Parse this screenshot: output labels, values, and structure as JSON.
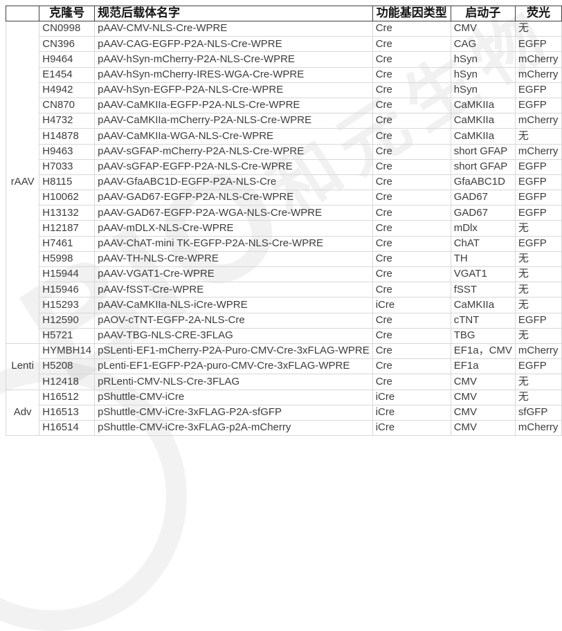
{
  "watermark": {
    "text_en": "BIO",
    "text_cn": "和元生物"
  },
  "table": {
    "headers": {
      "group": "",
      "clone": "克隆号",
      "name": "规范后载体名字",
      "gene_type": "功能基因类型",
      "promoter": "启动子",
      "fluor": "荧光"
    },
    "groups": [
      {
        "label": "rAAV",
        "rows": [
          {
            "clone": "CN0998",
            "name": "pAAV-CMV-NLS-Cre-WPRE",
            "gene_type": "Cre",
            "promoter": "CMV",
            "fluor": "无"
          },
          {
            "clone": "CN396",
            "name": "pAAV-CAG-EGFP-P2A-NLS-Cre-WPRE",
            "gene_type": "Cre",
            "promoter": "CAG",
            "fluor": "EGFP"
          },
          {
            "clone": "H9464",
            "name": "pAAV-hSyn-mCherry-P2A-NLS-Cre-WPRE",
            "gene_type": "Cre",
            "promoter": "hSyn",
            "fluor": "mCherry"
          },
          {
            "clone": "E1454",
            "name": "pAAV-hSyn-mCherry-IRES-WGA-Cre-WPRE",
            "gene_type": "Cre",
            "promoter": "hSyn",
            "fluor": "mCherry"
          },
          {
            "clone": "H4942",
            "name": "pAAV-hSyn-EGFP-P2A-NLS-Cre-WPRE",
            "gene_type": "Cre",
            "promoter": "hSyn",
            "fluor": "EGFP"
          },
          {
            "clone": "CN870",
            "name": "pAAV-CaMKIIa-EGFP-P2A-NLS-Cre-WPRE",
            "gene_type": "Cre",
            "promoter": "CaMKIIa",
            "fluor": "EGFP"
          },
          {
            "clone": "H4732",
            "name": "pAAV-CaMKIIa-mCherry-P2A-NLS-Cre-WPRE",
            "gene_type": "Cre",
            "promoter": "CaMKIIa",
            "fluor": "mCherry"
          },
          {
            "clone": "H14878",
            "name": "pAAV-CaMKIIa-WGA-NLS-Cre-WPRE",
            "gene_type": "Cre",
            "promoter": "CaMKIIa",
            "fluor": "无"
          },
          {
            "clone": "H9463",
            "name": "pAAV-sGFAP-mCherry-P2A-NLS-Cre-WPRE",
            "gene_type": "Cre",
            "promoter": "short GFAP",
            "fluor": "mCherry"
          },
          {
            "clone": "H7033",
            "name": "pAAV-sGFAP-EGFP-P2A-NLS-Cre-WPRE",
            "gene_type": "Cre",
            "promoter": "short GFAP",
            "fluor": "EGFP"
          },
          {
            "clone": "H8115",
            "name": "pAAV-GfaABC1D-EGFP-P2A-NLS-Cre",
            "gene_type": "Cre",
            "promoter": "GfaABC1D",
            "fluor": "EGFP"
          },
          {
            "clone": "H10062",
            "name": "pAAV-GAD67-EGFP-P2A-NLS-Cre-WPRE",
            "gene_type": "Cre",
            "promoter": "GAD67",
            "fluor": "EGFP"
          },
          {
            "clone": "H13132",
            "name": "pAAV-GAD67-EGFP-P2A-WGA-NLS-Cre-WPRE",
            "gene_type": "Cre",
            "promoter": "GAD67",
            "fluor": "EGFP"
          },
          {
            "clone": "H12187",
            "name": "pAAV-mDLX-NLS-Cre-WPRE",
            "gene_type": "Cre",
            "promoter": "mDlx",
            "fluor": "无"
          },
          {
            "clone": "H7461",
            "name": "pAAV-ChAT-mini TK-EGFP-P2A-NLS-Cre-WPRE",
            "gene_type": "Cre",
            "promoter": "ChAT",
            "fluor": "EGFP"
          },
          {
            "clone": "H5998",
            "name": "pAAV-TH-NLS-Cre-WPRE",
            "gene_type": "Cre",
            "promoter": "TH",
            "fluor": "无"
          },
          {
            "clone": "H15944",
            "name": "pAAV-VGAT1-Cre-WPRE",
            "gene_type": "Cre",
            "promoter": "VGAT1",
            "fluor": "无"
          },
          {
            "clone": "H15946",
            "name": "pAAV-fSST-Cre-WPRE",
            "gene_type": "Cre",
            "promoter": "fSST",
            "fluor": "无"
          },
          {
            "clone": "H15293",
            "name": "pAAV-CaMKIIa-NLS-iCre-WPRE",
            "gene_type": "iCre",
            "promoter": "CaMKIIa",
            "fluor": "无"
          },
          {
            "clone": "H12590",
            "name": "pAOV-cTNT-EGFP-2A-NLS-Cre",
            "gene_type": "Cre",
            "promoter": "cTNT",
            "fluor": "EGFP"
          },
          {
            "clone": "H5721",
            "name": "pAAV-TBG-NLS-CRE-3FLAG",
            "gene_type": "Cre",
            "promoter": "TBG",
            "fluor": "无"
          }
        ]
      },
      {
        "label": "Lenti",
        "rows": [
          {
            "clone": "HYMBH14",
            "name": "pSLenti-EF1-mCherry-P2A-Puro-CMV-Cre-3xFLAG-WPRE",
            "gene_type": "Cre",
            "promoter": "EF1a，CMV",
            "fluor": "mCherry"
          },
          {
            "clone": "H5208",
            "name": "pLenti-EF1-EGFP-P2A-puro-CMV-Cre-3xFLAG-WPRE",
            "gene_type": "Cre",
            "promoter": "EF1a",
            "fluor": "EGFP"
          },
          {
            "clone": "H12418",
            "name": "pRLenti-CMV-NLS-Cre-3FLAG",
            "gene_type": "Cre",
            "promoter": "CMV",
            "fluor": "无"
          }
        ]
      },
      {
        "label": "Adv",
        "rows": [
          {
            "clone": "H16512",
            "name": "pShuttle-CMV-iCre",
            "gene_type": "iCre",
            "promoter": "CMV",
            "fluor": "无"
          },
          {
            "clone": "H16513",
            "name": "pShuttle-CMV-iCre-3xFLAG-P2A-sfGFP",
            "gene_type": "iCre",
            "promoter": "CMV",
            "fluor": "sfGFP"
          },
          {
            "clone": "H16514",
            "name": "pShuttle-CMV-iCre-3xFLAG-p2A-mCherry",
            "gene_type": "iCre",
            "promoter": "CMV",
            "fluor": "mCherry"
          }
        ]
      }
    ]
  }
}
